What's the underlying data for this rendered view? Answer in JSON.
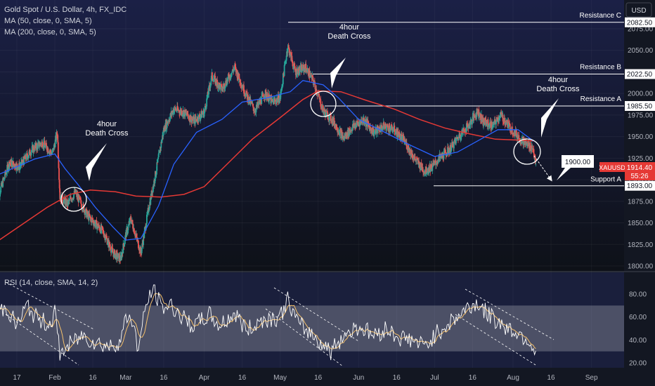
{
  "header": {
    "title": "Gold Spot / U.S. Dollar, 4h, FX_IDC",
    "ma1": "MA (50, close, 0, SMA, 5)",
    "ma2": "MA (200, close, 0, SMA, 5)",
    "currency_button": "USD"
  },
  "rsi_label": "RSI (14, close, SMA, 14, 2)",
  "colors": {
    "background_top": "#1b2046",
    "background_bottom": "#0e1118",
    "up_candle": "#26a69a",
    "down_candle": "#ef5350",
    "ma50": "#2962ff",
    "ma200": "#e53935",
    "rsi_line": "#ffffff",
    "rsi_ma": "#f5c16c",
    "rsi_band": "rgba(255,255,255,0.22)",
    "price_tag": "#e53935"
  },
  "annotations": {
    "death_cross_1": [
      "4hour",
      "Death Cross"
    ],
    "death_cross_2": [
      "4hour",
      "Death Cross"
    ],
    "death_cross_3": [
      "4hour",
      "Death Cross"
    ],
    "target_box": "1900.00"
  },
  "levels": [
    {
      "label": "Resistance C",
      "price_label": "2082.50",
      "price": 2082.5
    },
    {
      "label": "Resistance B",
      "price_label": "2022.50",
      "price": 2022.5
    },
    {
      "label": "Resistance A",
      "price_label": "1985.50",
      "price": 1985.5
    },
    {
      "label": "Support A",
      "price_label": "1893.00",
      "price": 1893
    }
  ],
  "last_price": {
    "symbol": "XAUUSD",
    "price": "1914.40",
    "countdown": "55:26",
    "value": 1914.4
  },
  "chart_data": {
    "type": "candlestick",
    "x_ticks": [
      "17",
      "Feb",
      "16",
      "Mar",
      "16",
      "Apr",
      "16",
      "May",
      "16",
      "Jun",
      "16",
      "Jul",
      "16",
      "Aug",
      "16",
      "Sep"
    ],
    "y_ticks": [
      "2075.00",
      "2050.00",
      "2025.00",
      "2000.00",
      "1975.00",
      "1950.00",
      "1925.00",
      "1900.00",
      "1875.00",
      "1850.00",
      "1825.00",
      "1800.00"
    ],
    "ylim": [
      1800,
      2085
    ],
    "rsi_ticks": [
      "80.00",
      "60.00",
      "40.00",
      "20.00"
    ],
    "rsi_ylim": [
      18,
      90
    ],
    "rsi_band": [
      30,
      70
    ],
    "close_path": [
      [
        "Jan 9",
        1875
      ],
      [
        "Jan 14",
        1920
      ],
      [
        "Jan 18",
        1915
      ],
      [
        "Jan 23",
        1935
      ],
      [
        "Jan 27",
        1943
      ],
      [
        "Jan 31",
        1930
      ],
      [
        "Feb 2",
        1955
      ],
      [
        "Feb 3",
        1880
      ],
      [
        "Feb 6",
        1872
      ],
      [
        "Feb 9",
        1885
      ],
      [
        "Feb 14",
        1858
      ],
      [
        "Feb 20",
        1840
      ],
      [
        "Feb 24",
        1815
      ],
      [
        "Feb 27",
        1808
      ],
      [
        "Mar 1",
        1836
      ],
      [
        "Mar 3",
        1855
      ],
      [
        "Mar 7",
        1815
      ],
      [
        "Mar 10",
        1866
      ],
      [
        "Mar 13",
        1910
      ],
      [
        "Mar 16",
        1958
      ],
      [
        "Mar 20",
        1982
      ],
      [
        "Mar 24",
        1978
      ],
      [
        "Mar 28",
        1968
      ],
      [
        "Apr 1",
        1978
      ],
      [
        "Apr 4",
        2020
      ],
      [
        "Apr 8",
        2005
      ],
      [
        "Apr 13",
        2030
      ],
      [
        "Apr 17",
        2002
      ],
      [
        "Apr 21",
        1980
      ],
      [
        "Apr 25",
        2000
      ],
      [
        "Apr 28",
        1990
      ],
      [
        "May 1",
        1995
      ],
      [
        "May 4",
        2055
      ],
      [
        "May 7",
        2025
      ],
      [
        "May 11",
        2030
      ],
      [
        "May 14",
        2015
      ],
      [
        "May 18",
        1980
      ],
      [
        "May 22",
        1968
      ],
      [
        "May 26",
        1948
      ],
      [
        "May 30",
        1962
      ],
      [
        "Jun 3",
        1970
      ],
      [
        "Jun 7",
        1955
      ],
      [
        "Jun 11",
        1962
      ],
      [
        "Jun 15",
        1958
      ],
      [
        "Jun 19",
        1945
      ],
      [
        "Jun 23",
        1925
      ],
      [
        "Jun 27",
        1910
      ],
      [
        "Jun 30",
        1915
      ],
      [
        "Jul 3",
        1925
      ],
      [
        "Jul 7",
        1935
      ],
      [
        "Jul 11",
        1952
      ],
      [
        "Jul 15",
        1965
      ],
      [
        "Jul 18",
        1980
      ],
      [
        "Jul 20",
        1968
      ],
      [
        "Jul 24",
        1962
      ],
      [
        "Jul 27",
        1975
      ],
      [
        "Jul 31",
        1960
      ],
      [
        "Aug 3",
        1950
      ],
      [
        "Aug 6",
        1942
      ],
      [
        "Aug 9",
        1936
      ],
      [
        "Aug 10",
        1914.4
      ]
    ],
    "ma50": [
      [
        "Jan 9",
        1905
      ],
      [
        "Jan 24",
        1924
      ],
      [
        "Feb 1",
        1930
      ],
      [
        "Feb 5",
        1913
      ],
      [
        "Feb 10",
        1895
      ],
      [
        "Feb 17",
        1868
      ],
      [
        "Feb 24",
        1845
      ],
      [
        "Mar 1",
        1830
      ],
      [
        "Mar 7",
        1832
      ],
      [
        "Mar 14",
        1870
      ],
      [
        "Mar 20",
        1918
      ],
      [
        "Mar 29",
        1955
      ],
      [
        "Apr 8",
        1970
      ],
      [
        "Apr 16",
        1990
      ],
      [
        "Apr 26",
        1995
      ],
      [
        "May 5",
        2002
      ],
      [
        "May 10",
        2015
      ],
      [
        "May 18",
        2010
      ],
      [
        "May 24",
        1995
      ],
      [
        "Jun 1",
        1970
      ],
      [
        "Jun 10",
        1957
      ],
      [
        "Jun 20",
        1942
      ],
      [
        "Jul 1",
        1927
      ],
      [
        "Jul 10",
        1932
      ],
      [
        "Jul 18",
        1945
      ],
      [
        "Jul 26",
        1958
      ],
      [
        "Aug 3",
        1958
      ],
      [
        "Aug 9",
        1945
      ]
    ],
    "ma200": [
      [
        "Jan 9",
        1828
      ],
      [
        "Jan 19",
        1848
      ],
      [
        "Jan 29",
        1868
      ],
      [
        "Feb 7",
        1883
      ],
      [
        "Feb 15",
        1888
      ],
      [
        "Feb 25",
        1886
      ],
      [
        "Mar 5",
        1881
      ],
      [
        "Mar 15",
        1880
      ],
      [
        "Mar 24",
        1883
      ],
      [
        "Apr 1",
        1892
      ],
      [
        "Apr 10",
        1918
      ],
      [
        "Apr 20",
        1947
      ],
      [
        "May 1",
        1972
      ],
      [
        "May 10",
        1993
      ],
      [
        "May 16",
        2003
      ],
      [
        "May 25",
        2002
      ],
      [
        "Jun 4",
        1992
      ],
      [
        "Jun 15",
        1982
      ],
      [
        "Jun 25",
        1970
      ],
      [
        "Jul 5",
        1960
      ],
      [
        "Jul 15",
        1953
      ],
      [
        "Jul 25",
        1947
      ],
      [
        "Aug 3",
        1946
      ],
      [
        "Aug 9",
        1945
      ]
    ],
    "rsi": [
      [
        "Jan 9",
        65
      ],
      [
        "Jan 13",
        68
      ],
      [
        "Jan 17",
        52
      ],
      [
        "Jan 21",
        70
      ],
      [
        "Jan 25",
        58
      ],
      [
        "Jan 30",
        54
      ],
      [
        "Feb 1",
        64
      ],
      [
        "Feb 3",
        28
      ],
      [
        "Feb 7",
        36
      ],
      [
        "Feb 12",
        44
      ],
      [
        "Feb 17",
        38
      ],
      [
        "Feb 23",
        34
      ],
      [
        "Feb 27",
        40
      ],
      [
        "Mar 1",
        58
      ],
      [
        "Mar 3",
        62
      ],
      [
        "Mar 6",
        32
      ],
      [
        "Mar 9",
        70
      ],
      [
        "Mar 12",
        86
      ],
      [
        "Mar 15",
        68
      ],
      [
        "Mar 19",
        70
      ],
      [
        "Mar 24",
        58
      ],
      [
        "Mar 28",
        52
      ],
      [
        "Apr 3",
        62
      ],
      [
        "Apr 7",
        52
      ],
      [
        "Apr 13",
        63
      ],
      [
        "Apr 18",
        48
      ],
      [
        "Apr 24",
        58
      ],
      [
        "May 1",
        60
      ],
      [
        "May 4",
        75
      ],
      [
        "May 8",
        54
      ],
      [
        "May 13",
        46
      ],
      [
        "May 17",
        38
      ],
      [
        "May 21",
        30
      ],
      [
        "May 26",
        44
      ],
      [
        "Jun 1",
        52
      ],
      [
        "Jun 7",
        44
      ],
      [
        "Jun 12",
        50
      ],
      [
        "Jun 17",
        42
      ],
      [
        "Jun 22",
        40
      ],
      [
        "Jun 27",
        34
      ],
      [
        "Jul 1",
        44
      ],
      [
        "Jul 5",
        52
      ],
      [
        "Jul 10",
        60
      ],
      [
        "Jul 14",
        68
      ],
      [
        "Jul 18",
        72
      ],
      [
        "Jul 22",
        62
      ],
      [
        "Jul 26",
        56
      ],
      [
        "Jul 30",
        50
      ],
      [
        "Aug 3",
        46
      ],
      [
        "Aug 7",
        40
      ],
      [
        "Aug 10",
        30
      ]
    ]
  }
}
